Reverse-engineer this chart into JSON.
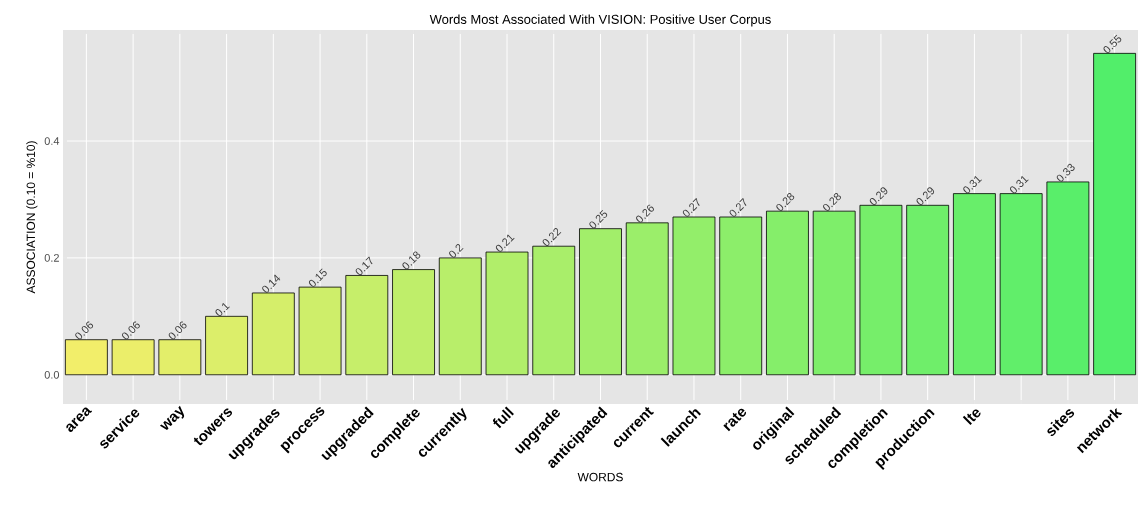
{
  "chart_data": {
    "type": "bar",
    "title": "Words Most Associated With VISION: Positive User Corpus",
    "xlabel": "WORDS",
    "ylabel": "ASSOCIATION (0.10 = %10)",
    "categories": [
      "area",
      "service",
      "way",
      "towers",
      "upgrades",
      "process",
      "upgraded",
      "complete",
      "currently",
      "full",
      "upgrade",
      "anticipated",
      "current",
      "launch",
      "rate",
      "original",
      "scheduled",
      "completion",
      "production",
      "lte",
      null,
      "sites",
      "network"
    ],
    "values": [
      0.06,
      0.06,
      0.06,
      0.1,
      0.14,
      0.15,
      0.17,
      0.18,
      0.2,
      0.21,
      0.22,
      0.25,
      0.26,
      0.27,
      0.27,
      0.28,
      0.28,
      0.29,
      0.29,
      0.31,
      0.31,
      0.33,
      0.55
    ],
    "value_labels": [
      "0.06",
      "0.06",
      "0.06",
      "0.1",
      "0.14",
      "0.15",
      "0.17",
      "0.18",
      "0.2",
      "0.21",
      "0.22",
      "0.25",
      "0.26",
      "0.27",
      "0.27",
      "0.28",
      "0.28",
      "0.29",
      "0.29",
      "0.31",
      "0.31",
      "0.33",
      "0.55"
    ],
    "colors": [
      "#f2ee6a",
      "#ebee6a",
      "#e3ee6a",
      "#dcee6a",
      "#d5ee6a",
      "#ceee6a",
      "#c6ee6a",
      "#bfee6a",
      "#b8ee6a",
      "#b1ee6a",
      "#a9ee6a",
      "#a2ee6a",
      "#9bee6a",
      "#93ee6a",
      "#8cee6a",
      "#85ee6a",
      "#7eee6a",
      "#76ee6a",
      "#6fee6a",
      "#68ee6a",
      "#61ee6a",
      "#59ee6a",
      "#52ee6a"
    ],
    "ylim": [
      -0.05,
      0.59
    ],
    "yticks": [
      {
        "value": 0,
        "label": "0.0"
      },
      {
        "value": 0.2,
        "label": "0.2"
      },
      {
        "value": 0.4,
        "label": "0.4"
      }
    ],
    "grid": true
  }
}
